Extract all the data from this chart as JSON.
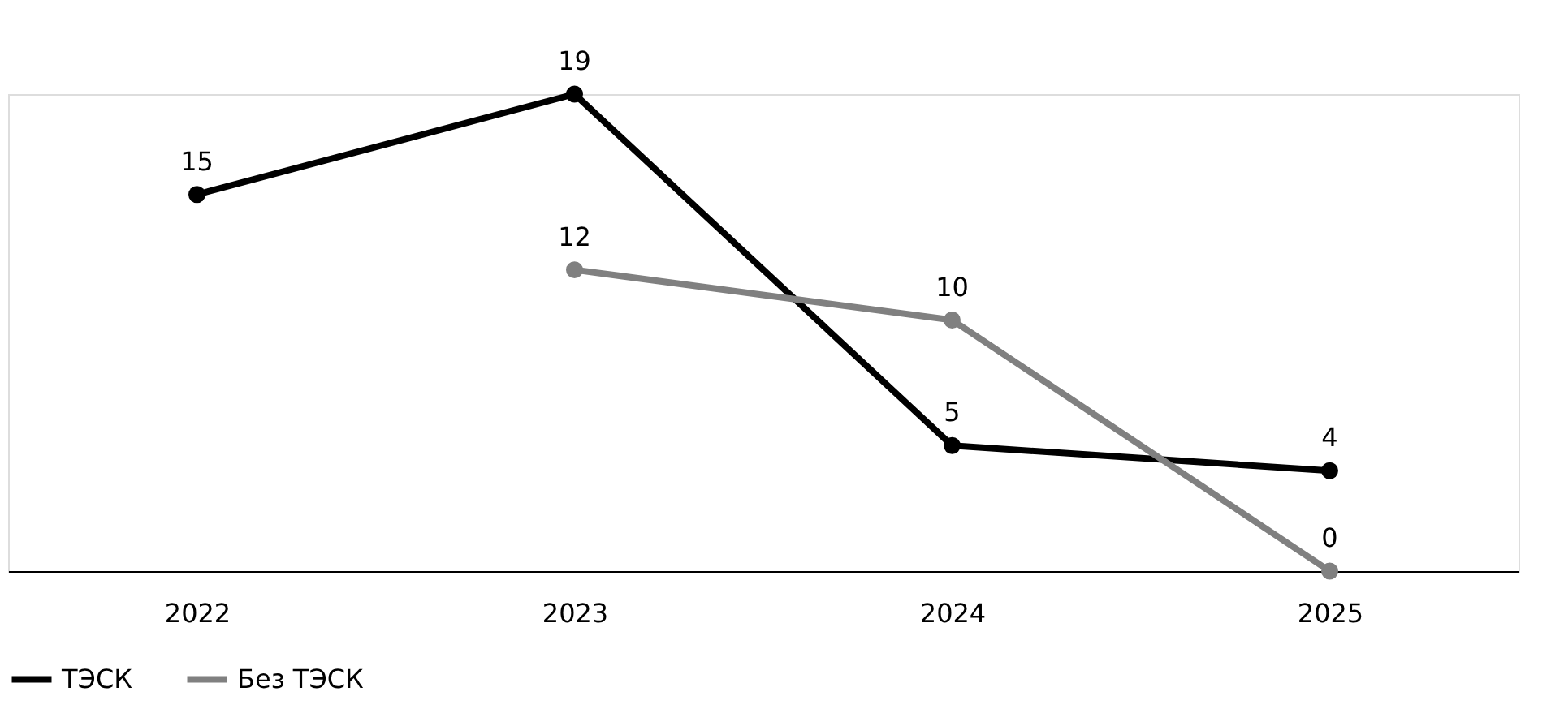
{
  "chart_data": {
    "type": "line",
    "categories": [
      "2022",
      "2023",
      "2024",
      "2025"
    ],
    "series": [
      {
        "name": "ТЭСК",
        "color": "#000000",
        "values": [
          15,
          19,
          5,
          4
        ]
      },
      {
        "name": "Без ТЭСК",
        "color": "#808080",
        "values": [
          null,
          12,
          10,
          0
        ]
      }
    ],
    "ylim": [
      0,
      19
    ],
    "tick_labels": "x",
    "data_labels": true,
    "legend": "bottom",
    "marker": "circle",
    "line_style": "solid",
    "grid": false
  }
}
